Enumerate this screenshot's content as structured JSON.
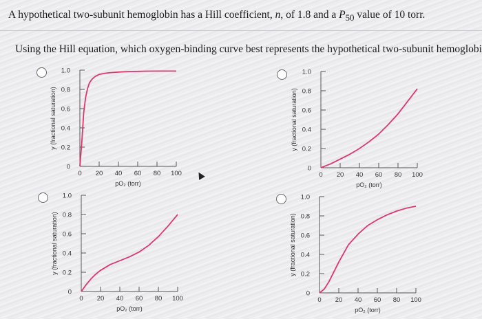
{
  "question": {
    "line1_part1": "A hypothetical two-subunit hemoglobin has a Hill coefficient, ",
    "line1_n": "n",
    "line1_part2": ", of 1.8 and a ",
    "line1_p": "P",
    "line1_sub": "50",
    "line1_part3": " value of 10 torr.",
    "line2": "Using the Hill equation, which oxygen-binding curve best represents the hypothetical two-subunit hemoglobin?"
  },
  "colors": {
    "curve": "#e0356b",
    "axis": "#555555"
  },
  "options": [
    {
      "chart_data": {
        "type": "line",
        "ylabel": "y (fractional saturation)",
        "xlabel": "pO₂ (torr)",
        "x_ticks": [
          "0",
          "20",
          "40",
          "60",
          "80",
          "100"
        ],
        "y_ticks": [
          "0",
          "0.2",
          "0.4",
          "0.6",
          "0.8",
          "1.0"
        ],
        "xlim": [
          0,
          100
        ],
        "ylim": [
          0,
          1
        ],
        "series": [
          {
            "x": [
              0,
              2,
              4,
              6,
              8,
              10,
              13,
              16,
              20,
              25,
              30,
              40,
              50,
              60,
              70,
              80,
              100
            ],
            "y": [
              0,
              0.25,
              0.56,
              0.72,
              0.81,
              0.87,
              0.91,
              0.935,
              0.955,
              0.965,
              0.972,
              0.98,
              0.985,
              0.987,
              0.989,
              0.99,
              0.99
            ]
          }
        ]
      }
    },
    {
      "chart_data": {
        "type": "line",
        "ylabel": "y (fractional saturation)",
        "xlabel": "pO₂ (torr)",
        "x_ticks": [
          "0",
          "20",
          "40",
          "60",
          "80",
          "100"
        ],
        "y_ticks": [
          "0",
          "0.2",
          "0.4",
          "0.6",
          "0.8",
          "1.0"
        ],
        "xlim": [
          0,
          100
        ],
        "ylim": [
          0,
          1
        ],
        "series": [
          {
            "x": [
              0,
              10,
              20,
              30,
              40,
              50,
              60,
              70,
              80,
              90,
              100
            ],
            "y": [
              0,
              0.04,
              0.09,
              0.14,
              0.2,
              0.27,
              0.35,
              0.45,
              0.56,
              0.69,
              0.82
            ]
          }
        ]
      }
    },
    {
      "chart_data": {
        "type": "line",
        "ylabel": "y (fractional saturation)",
        "xlabel": "pO₂ (torr)",
        "x_ticks": [
          "0",
          "20",
          "40",
          "60",
          "80",
          "100"
        ],
        "y_ticks": [
          "0",
          "0.2",
          "0.4",
          "0.6",
          "0.8",
          "1.0"
        ],
        "xlim": [
          0,
          100
        ],
        "ylim": [
          0,
          1
        ],
        "series": [
          {
            "x": [
              0,
              5,
              10,
              15,
              20,
              30,
              40,
              50,
              60,
              70,
              80,
              90,
              100
            ],
            "y": [
              0,
              0.07,
              0.13,
              0.18,
              0.22,
              0.28,
              0.32,
              0.36,
              0.41,
              0.48,
              0.57,
              0.68,
              0.8
            ]
          }
        ]
      }
    },
    {
      "chart_data": {
        "type": "line",
        "ylabel": "y (fractional saturation)",
        "xlabel": "pO₂ (torr)",
        "x_ticks": [
          "0",
          "20",
          "40",
          "60",
          "80",
          "100"
        ],
        "y_ticks": [
          "0",
          "0.2",
          "0.4",
          "0.6",
          "0.8",
          "1.0"
        ],
        "xlim": [
          0,
          100
        ],
        "ylim": [
          0,
          1
        ],
        "series": [
          {
            "x": [
              0,
              5,
              10,
              15,
              20,
              25,
              30,
              40,
              50,
              60,
              70,
              80,
              90,
              100
            ],
            "y": [
              0,
              0.04,
              0.12,
              0.22,
              0.32,
              0.41,
              0.5,
              0.61,
              0.7,
              0.76,
              0.81,
              0.85,
              0.88,
              0.9
            ]
          }
        ]
      }
    }
  ]
}
